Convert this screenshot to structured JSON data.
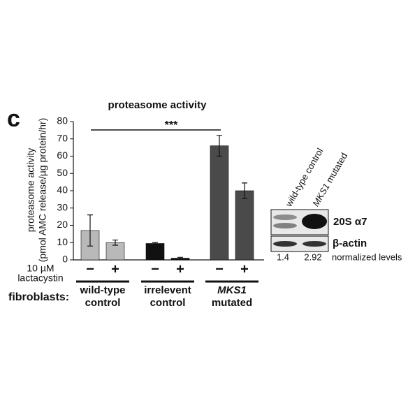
{
  "chart_data": {
    "type": "bar",
    "panel_label": "c",
    "title": "proteasome activity",
    "y_label": [
      "proteasome activity",
      "(pmol AMC release/µg protein/hr)"
    ],
    "ylim": [
      0,
      80
    ],
    "yticks": [
      0,
      10,
      20,
      30,
      40,
      50,
      60,
      70,
      80
    ],
    "treatment_label": [
      "10 µM",
      "lactacystin"
    ],
    "categories": [
      "−",
      "+",
      "−",
      "+",
      "−",
      "+"
    ],
    "values": [
      17,
      10,
      9.5,
      1,
      66,
      40
    ],
    "errors": [
      9,
      1.5,
      0.5,
      0.5,
      6,
      4.5
    ],
    "colors": [
      "#b9b9b9",
      "#b9b9b9",
      "#111111",
      "#111111",
      "#4a4a4a",
      "#4a4a4a"
    ],
    "group_axis_label": "fibroblasts:",
    "groups": [
      [
        "wild-type",
        "control"
      ],
      [
        "irrelevent",
        "control"
      ],
      [
        "MKS1",
        "mutated"
      ]
    ],
    "significance": "***"
  },
  "blot": {
    "lanes": [
      {
        "text": "wild-type control"
      },
      {
        "gene": "MKS1",
        "text": " mutated"
      }
    ],
    "bands": [
      "20S α7",
      "β-actin"
    ],
    "normalized_levels": [
      1.4,
      2.92
    ],
    "normalized_label": "normalized levels"
  }
}
